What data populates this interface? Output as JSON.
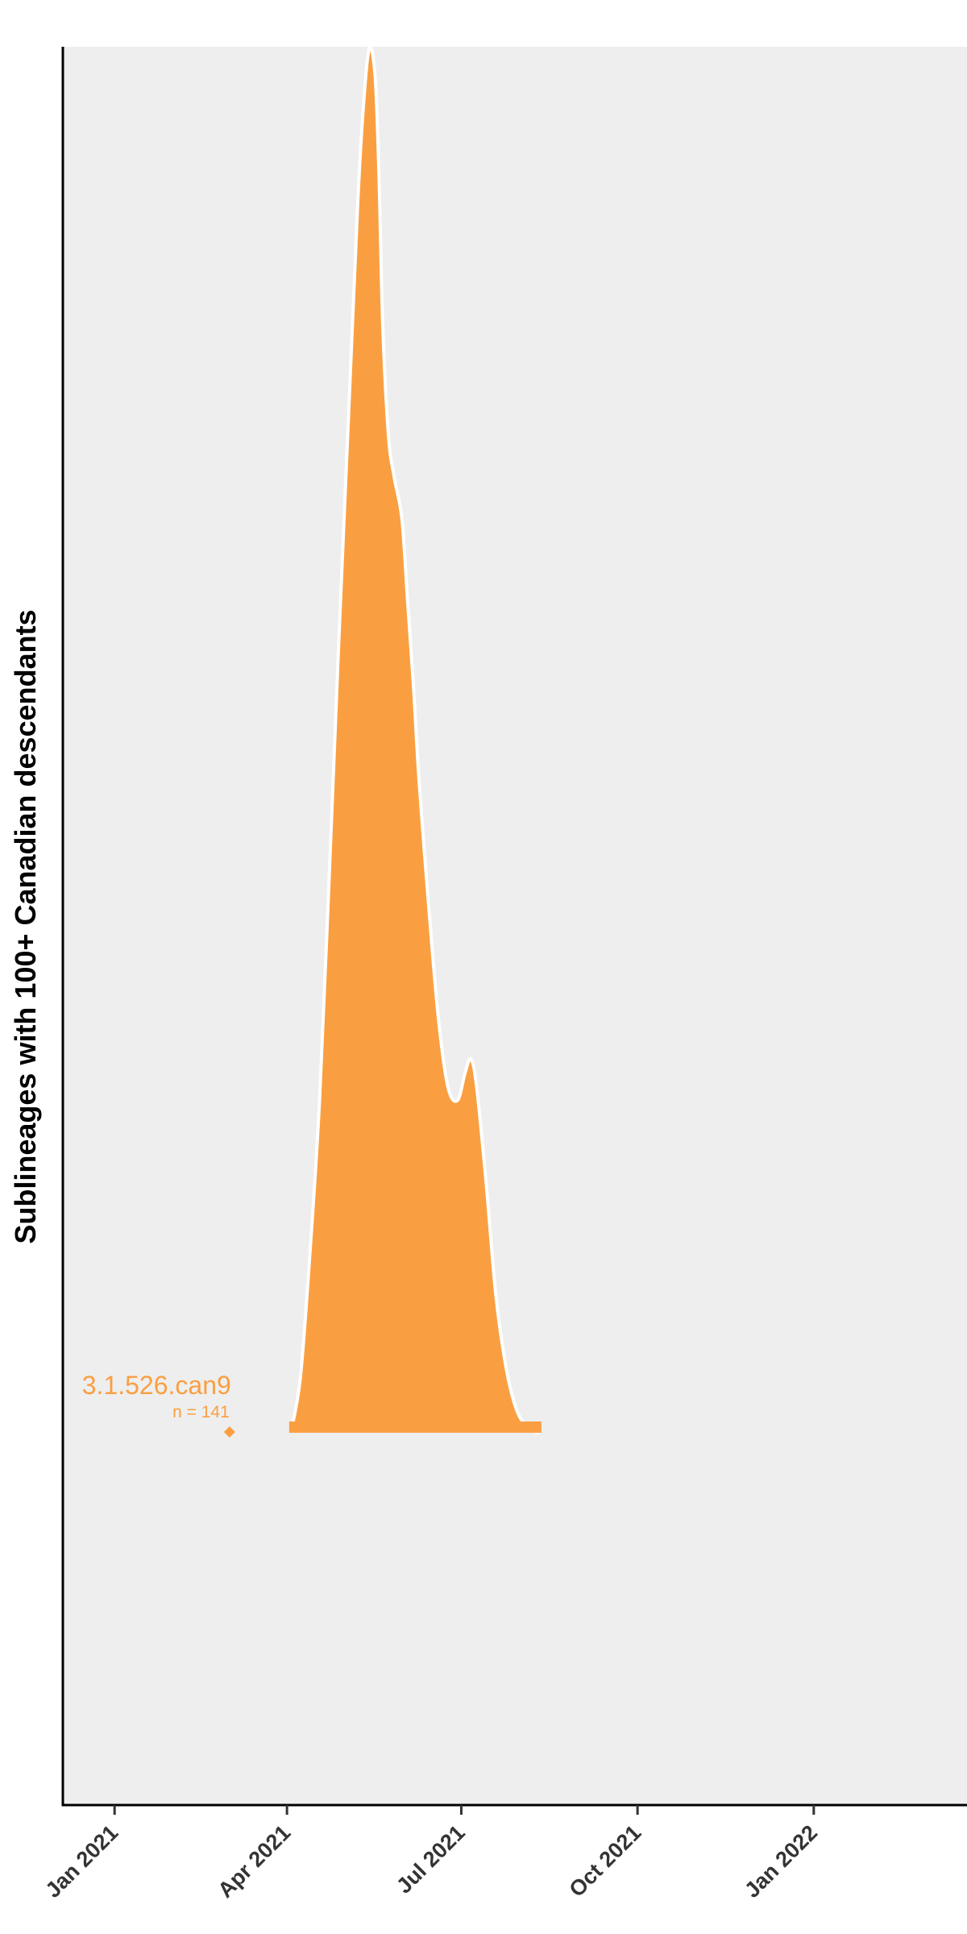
{
  "chart_data": {
    "type": "area",
    "chart_subtype": "ridgeline density (sublineage emergence)",
    "xlabel": "",
    "ylabel": "Sublineages with 100+ Canadian descendants",
    "x_ticks": [
      "Jan 2021",
      "Apr 2021",
      "Jul 2021",
      "Oct 2021",
      "Jan 2022"
    ],
    "x_tick_dates": [
      "2021-01-01",
      "2021-04-01",
      "2021-07-01",
      "2021-10-01",
      "2022-01-01"
    ],
    "xlim": [
      "2020-12-05",
      "2022-03-22"
    ],
    "grid": false,
    "panel_background": "#EEEEEE",
    "series": [
      {
        "name": "B.1.526.can9",
        "label_visible": "3.1.526.can9",
        "count_label": "n =  141",
        "color": "#FA9F41",
        "origin_date": "2021-03-02",
        "density_range": [
          "2021-04-03",
          "2021-08-11"
        ],
        "density": {
          "x": [
            "2021-04-03",
            "2021-04-08",
            "2021-04-13",
            "2021-04-18",
            "2021-04-23",
            "2021-04-28",
            "2021-05-03",
            "2021-05-08",
            "2021-05-11",
            "2021-05-14",
            "2021-05-17",
            "2021-05-19",
            "2021-05-21",
            "2021-05-24",
            "2021-05-27",
            "2021-05-31",
            "2021-06-03",
            "2021-06-06",
            "2021-06-09",
            "2021-06-14",
            "2021-06-19",
            "2021-06-24",
            "2021-06-29",
            "2021-07-03",
            "2021-07-06",
            "2021-07-09",
            "2021-07-14",
            "2021-07-19",
            "2021-07-24",
            "2021-07-29",
            "2021-08-03",
            "2021-08-08",
            "2021-08-11"
          ],
          "y": [
            0.0,
            0.04,
            0.13,
            0.24,
            0.4,
            0.57,
            0.73,
            0.89,
            0.96,
            1.0,
            0.98,
            0.91,
            0.8,
            0.72,
            0.69,
            0.66,
            0.6,
            0.54,
            0.47,
            0.38,
            0.3,
            0.25,
            0.24,
            0.26,
            0.27,
            0.25,
            0.18,
            0.1,
            0.05,
            0.02,
            0.006,
            0.001,
            0.0
          ]
        }
      }
    ]
  }
}
